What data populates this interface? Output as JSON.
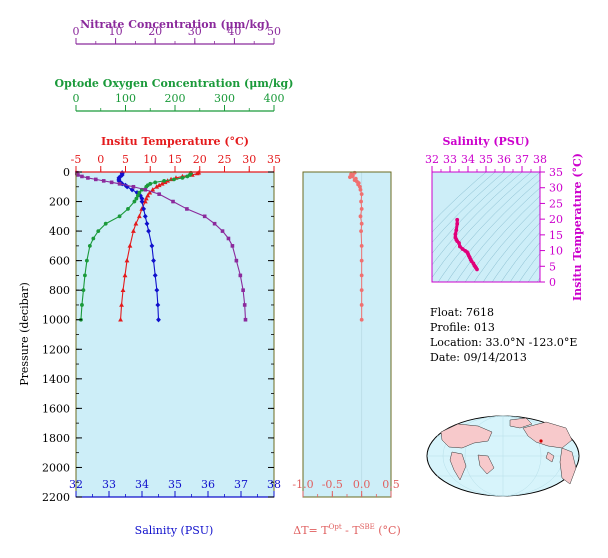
{
  "info": {
    "float": "Float:  7618",
    "profile": "Profile:  013",
    "location": "Location:  33.0°N  -123.0°E",
    "date": "Date:  09/14/2013"
  },
  "footer_text": "",
  "colors": {
    "plot_bg": "#cdeef8",
    "temperature": "#e41a1c",
    "salinity": "#1010cc",
    "oxygen": "#1a9a3a",
    "nitrate": "#8b2a9c",
    "delta_t": "#f07070",
    "salinity_axis": "#cc00cc",
    "delta_axis": "#e06060",
    "frame": "#6b6b1f"
  },
  "chart_data": [
    {
      "type": "line",
      "panel": "main-profiles",
      "ylabel": "Pressure (decibar)",
      "ylim": [
        2200,
        0
      ],
      "yticks": [
        "0",
        "200",
        "400",
        "600",
        "800",
        "1000",
        "1200",
        "1400",
        "1600",
        "1800",
        "2000",
        "2200"
      ],
      "axes": {
        "nitrate": {
          "label": "Nitrate Concentration (μm/kg)",
          "lim": [
            0,
            50
          ],
          "ticks": [
            "0",
            "10",
            "20",
            "30",
            "40",
            "50"
          ]
        },
        "oxygen": {
          "label": "Optode Oxygen Concentration (μm/kg)",
          "lim": [
            0,
            400
          ],
          "ticks": [
            "0",
            "100",
            "200",
            "300",
            "400"
          ]
        },
        "temperature": {
          "label": "Insitu Temperature (°C)",
          "lim": [
            -5,
            35
          ],
          "ticks": [
            "-5",
            "0",
            "5",
            "10",
            "15",
            "20",
            "25",
            "30",
            "35"
          ]
        },
        "salinity": {
          "label": "Salinity (PSU)",
          "lim": [
            32,
            38
          ],
          "ticks": [
            "32",
            "33",
            "34",
            "35",
            "36",
            "37",
            "38"
          ]
        }
      },
      "series": [
        {
          "key": "temperature",
          "marker": "triangle",
          "p": [
            5,
            10,
            20,
            30,
            40,
            50,
            60,
            70,
            80,
            90,
            100,
            120,
            140,
            160,
            180,
            200,
            250,
            300,
            350,
            400,
            500,
            600,
            700,
            800,
            900,
            1000
          ],
          "values": [
            19.8,
            19.5,
            18.5,
            16.5,
            15.2,
            14.2,
            13.5,
            13.0,
            12.4,
            11.8,
            11.3,
            10.5,
            9.9,
            9.5,
            9.2,
            9.0,
            8.3,
            7.8,
            7.1,
            6.6,
            5.9,
            5.3,
            4.9,
            4.5,
            4.2,
            4.0
          ]
        },
        {
          "key": "salinity",
          "marker": "diamond",
          "p": [
            5,
            10,
            20,
            30,
            40,
            50,
            60,
            70,
            80,
            90,
            100,
            120,
            140,
            160,
            180,
            200,
            250,
            300,
            350,
            400,
            500,
            600,
            700,
            800,
            900,
            1000
          ],
          "values": [
            33.4,
            33.4,
            33.4,
            33.35,
            33.3,
            33.3,
            33.3,
            33.35,
            33.4,
            33.5,
            33.55,
            33.7,
            33.85,
            33.95,
            34.0,
            34.0,
            34.05,
            34.1,
            34.15,
            34.2,
            34.3,
            34.35,
            34.4,
            34.45,
            34.48,
            34.5
          ]
        },
        {
          "key": "oxygen",
          "marker": "circle",
          "p": [
            5,
            10,
            20,
            30,
            40,
            50,
            60,
            70,
            80,
            90,
            100,
            120,
            140,
            160,
            180,
            200,
            250,
            300,
            350,
            400,
            450,
            500,
            600,
            700,
            800,
            900,
            1000
          ],
          "values": [
            232,
            232,
            230,
            225,
            215,
            198,
            178,
            160,
            150,
            145,
            142,
            133,
            128,
            125,
            122,
            118,
            105,
            88,
            60,
            45,
            35,
            28,
            22,
            18,
            15,
            12,
            10
          ]
        },
        {
          "key": "nitrate",
          "marker": "square",
          "p": [
            5,
            10,
            20,
            30,
            40,
            50,
            60,
            70,
            80,
            100,
            120,
            150,
            200,
            250,
            300,
            350,
            400,
            450,
            500,
            600,
            700,
            800,
            900,
            1000
          ],
          "values": [
            0.2,
            0.2,
            0.5,
            1.5,
            3.0,
            5.0,
            7.0,
            9.0,
            11.0,
            14.5,
            17.5,
            21.0,
            24.5,
            28.0,
            32.5,
            35.0,
            37.0,
            38.5,
            39.5,
            40.5,
            41.5,
            42.2,
            42.6,
            42.8
          ]
        }
      ]
    },
    {
      "type": "line",
      "panel": "delta-t",
      "xlabel": "ΔT= T",
      "xlabel_sup1": "Opt",
      "xlabel_mid": " - T",
      "xlabel_sup2": "SBE",
      "xlabel_end": " (°C)",
      "xlim": [
        -1.0,
        0.5
      ],
      "xticks": [
        "-1.0",
        "-0.5",
        "0.0",
        "0.5"
      ],
      "ylim": [
        2200,
        0
      ],
      "series": [
        {
          "key": "delta_t",
          "marker": "circle",
          "p": [
            5,
            15,
            25,
            35,
            45,
            55,
            65,
            75,
            85,
            100,
            120,
            150,
            200,
            250,
            300,
            350,
            400,
            500,
            600,
            700,
            800,
            900,
            1000
          ],
          "values": [
            -0.12,
            -0.18,
            -0.15,
            -0.2,
            -0.1,
            -0.12,
            -0.08,
            -0.05,
            -0.06,
            -0.03,
            -0.02,
            0.0,
            -0.01,
            0.0,
            -0.02,
            0.0,
            -0.01,
            0.0,
            0.0,
            0.0,
            0.0,
            0.0,
            0.0
          ]
        }
      ]
    },
    {
      "type": "scatter",
      "panel": "t-s-diagram",
      "xlabel": "Salinity (PSU)",
      "ylabel": "Insitu Temperature (°C)",
      "xlim": [
        32,
        38
      ],
      "ylim": [
        0,
        35
      ],
      "xticks": [
        "32",
        "33",
        "34",
        "35",
        "36",
        "37",
        "38"
      ],
      "yticks": [
        "0",
        "5",
        "10",
        "15",
        "20",
        "25",
        "30",
        "35"
      ],
      "x": [
        33.4,
        33.4,
        33.35,
        33.3,
        33.3,
        33.35,
        33.4,
        33.5,
        33.55,
        33.7,
        33.85,
        33.95,
        34.0,
        34.05,
        34.1,
        34.15,
        34.2,
        34.3,
        34.35,
        34.4,
        34.45,
        34.5
      ],
      "y": [
        19.8,
        18.5,
        16.5,
        15.2,
        14.2,
        13.5,
        13.0,
        12.4,
        11.3,
        10.5,
        9.9,
        9.5,
        9.0,
        8.3,
        7.8,
        7.1,
        6.6,
        5.9,
        5.3,
        4.9,
        4.5,
        4.0
      ]
    }
  ]
}
